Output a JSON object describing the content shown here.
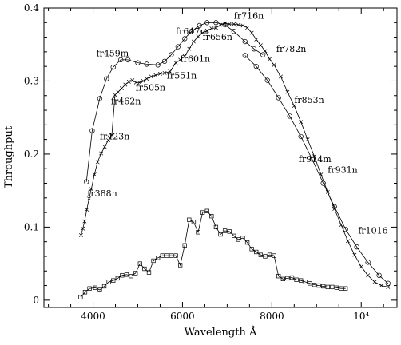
{
  "chart_data": {
    "type": "line",
    "xlabel": "Wavelength Å",
    "ylabel": "Throughput",
    "xlim": [
      2900,
      10800
    ],
    "ylim": [
      -0.01,
      0.4
    ],
    "x_ticks": [
      {
        "value": 4000,
        "label": "4000"
      },
      {
        "value": 6000,
        "label": "6000"
      },
      {
        "value": 8000,
        "label": "8000"
      },
      {
        "value": 10000,
        "label": "10⁴"
      }
    ],
    "y_ticks": [
      {
        "value": 0,
        "label": "0"
      },
      {
        "value": 0.1,
        "label": "0.1"
      },
      {
        "value": 0.2,
        "label": "0.2"
      },
      {
        "value": 0.3,
        "label": "0.3"
      },
      {
        "value": 0.4,
        "label": "0.4"
      }
    ],
    "grid": false,
    "series": [
      {
        "marker": "circle",
        "points": [
          [
            3850,
            0.162
          ],
          [
            3980,
            0.232
          ],
          [
            4150,
            0.276
          ],
          [
            4300,
            0.303
          ],
          [
            4450,
            0.319
          ],
          [
            4620,
            0.329
          ],
          [
            4780,
            0.329
          ],
          [
            5000,
            0.325
          ],
          [
            5200,
            0.323
          ],
          [
            5450,
            0.322
          ],
          [
            5600,
            0.327
          ],
          [
            5750,
            0.336
          ],
          [
            5900,
            0.347
          ],
          [
            6050,
            0.358
          ],
          [
            6200,
            0.368
          ],
          [
            6380,
            0.376
          ],
          [
            6550,
            0.38
          ],
          [
            6750,
            0.38
          ],
          [
            6950,
            0.377
          ],
          [
            7150,
            0.368
          ],
          [
            7400,
            0.354
          ],
          [
            7600,
            0.344
          ],
          [
            7800,
            0.336
          ]
        ]
      },
      {
        "marker": "circle",
        "points": [
          [
            7400,
            0.335
          ],
          [
            7650,
            0.32
          ],
          [
            7900,
            0.301
          ],
          [
            8150,
            0.277
          ],
          [
            8400,
            0.252
          ],
          [
            8650,
            0.224
          ],
          [
            8900,
            0.193
          ],
          [
            9150,
            0.16
          ],
          [
            9400,
            0.128
          ],
          [
            9650,
            0.097
          ],
          [
            9900,
            0.073
          ],
          [
            10150,
            0.052
          ],
          [
            10400,
            0.034
          ],
          [
            10600,
            0.023
          ]
        ]
      },
      {
        "marker": "cross",
        "points": [
          [
            3730,
            0.089
          ],
          [
            3770,
            0.098
          ],
          [
            3810,
            0.108
          ],
          [
            3860,
            0.124
          ],
          [
            3910,
            0.139
          ],
          [
            3960,
            0.152
          ],
          [
            4030,
            0.172
          ],
          [
            4100,
            0.189
          ],
          [
            4180,
            0.201
          ],
          [
            4260,
            0.21
          ],
          [
            4340,
            0.219
          ],
          [
            4420,
            0.226
          ],
          [
            4490,
            0.281
          ],
          [
            4560,
            0.285
          ],
          [
            4640,
            0.29
          ],
          [
            4720,
            0.295
          ],
          [
            4800,
            0.299
          ],
          [
            4880,
            0.301
          ],
          [
            4960,
            0.298
          ],
          [
            5040,
            0.298
          ],
          [
            5120,
            0.3
          ],
          [
            5200,
            0.303
          ],
          [
            5300,
            0.306
          ],
          [
            5400,
            0.308
          ],
          [
            5500,
            0.31
          ],
          [
            5600,
            0.311
          ],
          [
            5720,
            0.313
          ],
          [
            5850,
            0.325
          ],
          [
            5950,
            0.329
          ],
          [
            6050,
            0.334
          ],
          [
            6150,
            0.344
          ],
          [
            6250,
            0.354
          ],
          [
            6350,
            0.361
          ],
          [
            6450,
            0.366
          ],
          [
            6550,
            0.369
          ],
          [
            6650,
            0.372
          ],
          [
            6750,
            0.373
          ],
          [
            6850,
            0.377
          ],
          [
            6950,
            0.379
          ],
          [
            7050,
            0.378
          ],
          [
            7150,
            0.378
          ],
          [
            7250,
            0.377
          ],
          [
            7350,
            0.376
          ],
          [
            7450,
            0.373
          ],
          [
            7550,
            0.366
          ],
          [
            7650,
            0.357
          ],
          [
            7750,
            0.349
          ],
          [
            7850,
            0.341
          ],
          [
            7950,
            0.33
          ],
          [
            8050,
            0.322
          ],
          [
            8200,
            0.306
          ],
          [
            8350,
            0.285
          ],
          [
            8500,
            0.266
          ],
          [
            8650,
            0.244
          ],
          [
            8800,
            0.22
          ],
          [
            8950,
            0.197
          ],
          [
            9100,
            0.172
          ],
          [
            9250,
            0.148
          ],
          [
            9400,
            0.125
          ],
          [
            9550,
            0.103
          ],
          [
            9700,
            0.081
          ],
          [
            9850,
            0.062
          ],
          [
            10000,
            0.046
          ],
          [
            10150,
            0.034
          ],
          [
            10300,
            0.025
          ],
          [
            10450,
            0.02
          ],
          [
            10600,
            0.018
          ]
        ]
      },
      {
        "marker": "square",
        "points": [
          [
            3720,
            0.004
          ],
          [
            3820,
            0.011
          ],
          [
            3920,
            0.016
          ],
          [
            4050,
            0.017
          ],
          [
            4150,
            0.014
          ],
          [
            4250,
            0.019
          ],
          [
            4350,
            0.025
          ],
          [
            4450,
            0.027
          ],
          [
            4550,
            0.03
          ],
          [
            4650,
            0.034
          ],
          [
            4750,
            0.035
          ],
          [
            4850,
            0.033
          ],
          [
            4950,
            0.037
          ],
          [
            5050,
            0.05
          ],
          [
            5150,
            0.043
          ],
          [
            5250,
            0.038
          ],
          [
            5350,
            0.054
          ],
          [
            5450,
            0.058
          ],
          [
            5550,
            0.061
          ],
          [
            5650,
            0.061
          ],
          [
            5750,
            0.061
          ],
          [
            5850,
            0.061
          ],
          [
            5950,
            0.048
          ],
          [
            6050,
            0.075
          ],
          [
            6150,
            0.11
          ],
          [
            6250,
            0.107
          ],
          [
            6350,
            0.093
          ],
          [
            6450,
            0.12
          ],
          [
            6550,
            0.122
          ],
          [
            6650,
            0.115
          ],
          [
            6750,
            0.1
          ],
          [
            6850,
            0.09
          ],
          [
            6950,
            0.095
          ],
          [
            7050,
            0.094
          ],
          [
            7150,
            0.088
          ],
          [
            7250,
            0.083
          ],
          [
            7350,
            0.085
          ],
          [
            7450,
            0.079
          ],
          [
            7550,
            0.07
          ],
          [
            7650,
            0.066
          ],
          [
            7750,
            0.062
          ],
          [
            7850,
            0.06
          ],
          [
            7950,
            0.062
          ],
          [
            8050,
            0.061
          ],
          [
            8150,
            0.033
          ],
          [
            8250,
            0.029
          ],
          [
            8350,
            0.03
          ],
          [
            8450,
            0.031
          ],
          [
            8550,
            0.028
          ],
          [
            8650,
            0.027
          ],
          [
            8750,
            0.025
          ],
          [
            8850,
            0.023
          ],
          [
            8950,
            0.021
          ],
          [
            9050,
            0.02
          ],
          [
            9150,
            0.019
          ],
          [
            9250,
            0.018
          ],
          [
            9350,
            0.018
          ],
          [
            9450,
            0.017
          ],
          [
            9550,
            0.016
          ],
          [
            9650,
            0.016
          ]
        ]
      }
    ],
    "annotations": [
      {
        "text": "fr716n",
        "x": 7150,
        "y": 0.385
      },
      {
        "text": "fr647m",
        "x": 5850,
        "y": 0.364
      },
      {
        "text": "fr656n",
        "x": 6450,
        "y": 0.356
      },
      {
        "text": "fr459m",
        "x": 4070,
        "y": 0.334
      },
      {
        "text": "fr782n",
        "x": 8100,
        "y": 0.34
      },
      {
        "text": "fr601n",
        "x": 5950,
        "y": 0.326
      },
      {
        "text": "fr551n",
        "x": 5650,
        "y": 0.303
      },
      {
        "text": "fr505n",
        "x": 4950,
        "y": 0.287
      },
      {
        "text": "fr462n",
        "x": 4400,
        "y": 0.268
      },
      {
        "text": "fr853n",
        "x": 8500,
        "y": 0.27
      },
      {
        "text": "fr423n",
        "x": 4150,
        "y": 0.22
      },
      {
        "text": "fr914m",
        "x": 8600,
        "y": 0.189
      },
      {
        "text": "fr931n",
        "x": 9250,
        "y": 0.174
      },
      {
        "text": "fr388n",
        "x": 3870,
        "y": 0.142
      },
      {
        "text": "fr1016",
        "x": 9930,
        "y": 0.091
      }
    ]
  }
}
